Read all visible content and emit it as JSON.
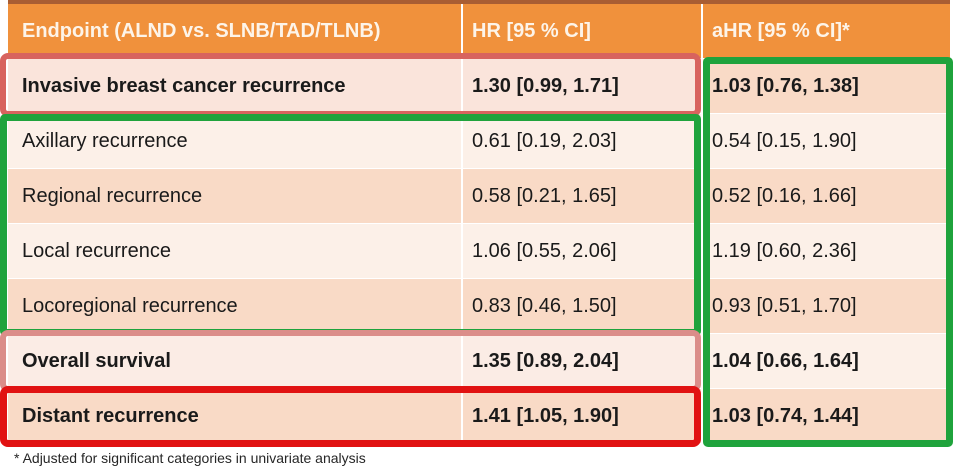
{
  "chart_data": {
    "type": "table",
    "columns": [
      "Endpoint (ALND vs. SLNB/TAD/TLNB)",
      "HR [95 % CI]",
      "aHR [95 % CI]*"
    ],
    "rows": [
      {
        "endpoint": "Invasive breast cancer recurrence",
        "hr": "1.30 [0.99, 1.71]",
        "ahr": "1.03 [0.76, 1.38]",
        "emphasis": "bold",
        "outline": "red-muted"
      },
      {
        "endpoint": "Axillary recurrence",
        "hr": "0.61 [0.19, 2.03]",
        "ahr": "0.54 [0.15, 1.90]",
        "emphasis": "regular",
        "outline": "green-group"
      },
      {
        "endpoint": "Regional recurrence",
        "hr": "0.58 [0.21, 1.65]",
        "ahr": "0.52 [0.16, 1.66]",
        "emphasis": "regular",
        "outline": "green-group"
      },
      {
        "endpoint": "Local recurrence",
        "hr": "1.06 [0.55, 2.06]",
        "ahr": "1.19 [0.60, 2.36]",
        "emphasis": "regular",
        "outline": "green-group"
      },
      {
        "endpoint": "Locoregional recurrence",
        "hr": "0.83 [0.46, 1.50]",
        "ahr": "0.93 [0.51, 1.70]",
        "emphasis": "regular",
        "outline": "green-group"
      },
      {
        "endpoint": "Overall survival",
        "hr": "1.35 [0.89, 2.04]",
        "ahr": "1.04 [0.66, 1.64]",
        "emphasis": "bold",
        "outline": "pink-muted"
      },
      {
        "endpoint": "Distant recurrence",
        "hr": "1.41 [1.05, 1.90]",
        "ahr": "1.03 [0.74, 1.44]",
        "emphasis": "bold",
        "outline": "red-bright"
      }
    ],
    "footnote": "* Adjusted for significant categories in univariate analysis",
    "annotations": [
      "red-muted box around Invasive breast cancer recurrence row (HR columns 1-2)",
      "green box around Axillary/Regional/Local/Locoregional recurrence rows (columns 1-2)",
      "pink-muted box around Overall survival row (columns 1-2)",
      "bright-red box around Distant recurrence row (columns 1-2)",
      "green box around entire aHR column"
    ],
    "colors": {
      "header_orange": "#f0913c",
      "header_text": "#fdf4e9",
      "band_dark": "#f9dac6",
      "band_light": "#fcf0e8",
      "green_outline": "#1fa33c",
      "red_bright_outline": "#e11212",
      "red_muted_outline": "#d8635e",
      "pink_muted_outline": "#db8d89",
      "top_edge": "#a85d33"
    }
  }
}
